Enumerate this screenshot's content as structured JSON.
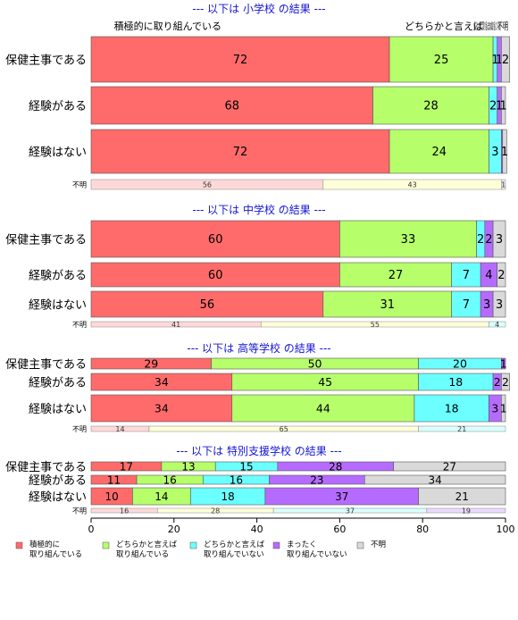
{
  "chart_data": {
    "type": "bar",
    "orientation": "horizontal-stacked",
    "xlim": [
      0,
      100
    ],
    "xticks": [
      0,
      20,
      40,
      60,
      80,
      100
    ],
    "colors": {
      "active": "#FF6B6B",
      "somewhat_active": "#B6FF6B",
      "somewhat_not": "#6BFFFF",
      "not_at_all": "#B66BFF",
      "unknown": "#D9D9D9",
      "unknown_row": [
        "#FFD9D9",
        "#FFFFD9",
        "#D9FFFF",
        "#ECD9FF",
        "#ECECEC"
      ],
      "title": "#1515D4"
    },
    "legend": {
      "position": "bottom",
      "items": [
        {
          "label": "積極的に\n取り組んでいる",
          "color": "#FF6B6B"
        },
        {
          "label": "どちらかと言えば\n取り組んでいる",
          "color": "#B6FF6B"
        },
        {
          "label": "どちらかと言えば\n取り組んでいない",
          "color": "#6BFFFF"
        },
        {
          "label": "まったく\n取り組んでいない",
          "color": "#B66BFF"
        },
        {
          "label": "不明",
          "color": "#D9D9D9"
        }
      ]
    },
    "top_labels": [
      "積極的に取り組んでいる",
      "どちらかと言えば",
      "どちらかと言えば取り組んでいない",
      "まったく取り組んでいない",
      "不明"
    ],
    "panels": [
      {
        "title": "--- 以下は 小学校 の結果 ---",
        "rows": [
          {
            "label": "保健主事である",
            "values": [
              72,
              25,
              1,
              1,
              2
            ],
            "shown": [
              "72",
              "25",
              "1",
              "1",
              "2"
            ]
          },
          {
            "label": "経験がある",
            "values": [
              68,
              28,
              2,
              1,
              1
            ],
            "shown": [
              "68",
              "28",
              "2",
              "1",
              "1"
            ]
          },
          {
            "label": "経験はない",
            "values": [
              72,
              24,
              3,
              0.3,
              1
            ],
            "shown": [
              "72",
              "24",
              "3",
              "",
              "1"
            ]
          }
        ],
        "unknown": {
          "label": "不明",
          "values": [
            56,
            43,
            0,
            0,
            1
          ],
          "shown": [
            "56",
            "43",
            "",
            "",
            "1"
          ]
        }
      },
      {
        "title": "--- 以下は 中学校 の結果 ---",
        "rows": [
          {
            "label": "保健主事である",
            "values": [
              60,
              33,
              2,
              2,
              3
            ],
            "shown": [
              "60",
              "33",
              "2",
              "2",
              "3"
            ]
          },
          {
            "label": "経験がある",
            "values": [
              60,
              27,
              7,
              4,
              2
            ],
            "shown": [
              "60",
              "27",
              "7",
              "4",
              "2"
            ]
          },
          {
            "label": "経験はない",
            "values": [
              56,
              31,
              7,
              3,
              3
            ],
            "shown": [
              "56",
              "31",
              "7",
              "3",
              "3"
            ]
          }
        ],
        "unknown": {
          "label": "不明",
          "values": [
            41,
            55,
            4,
            0,
            0
          ],
          "shown": [
            "41",
            "55",
            "4",
            "",
            ""
          ]
        }
      },
      {
        "title": "--- 以下は 高等学校 の結果 ---",
        "rows": [
          {
            "label": "保健主事である",
            "values": [
              29,
              50,
              20,
              1,
              0
            ],
            "shown": [
              "29",
              "50",
              "20",
              "1",
              ""
            ]
          },
          {
            "label": "経験がある",
            "values": [
              34,
              45,
              18,
              2,
              2
            ],
            "shown": [
              "34",
              "45",
              "18",
              "2",
              "2"
            ]
          },
          {
            "label": "経験はない",
            "values": [
              34,
              44,
              18,
              3,
              1
            ],
            "shown": [
              "34",
              "44",
              "18",
              "3",
              "1"
            ]
          }
        ],
        "unknown": {
          "label": "不明",
          "values": [
            14,
            65,
            21,
            0,
            0
          ],
          "shown": [
            "14",
            "65",
            "21",
            "",
            ""
          ]
        }
      },
      {
        "title": "--- 以下は 特別支援学校 の結果 ---",
        "rows": [
          {
            "label": "保健主事である",
            "values": [
              17,
              13,
              15,
              28,
              27
            ],
            "shown": [
              "17",
              "13",
              "15",
              "28",
              "27"
            ]
          },
          {
            "label": "経験がある",
            "values": [
              11,
              16,
              16,
              23,
              34
            ],
            "shown": [
              "11",
              "16",
              "16",
              "23",
              "34"
            ]
          },
          {
            "label": "経験はない",
            "values": [
              10,
              14,
              18,
              37,
              21
            ],
            "shown": [
              "10",
              "14",
              "18",
              "37",
              "21"
            ]
          }
        ],
        "unknown": {
          "label": "不明",
          "values": [
            16,
            28,
            37,
            19,
            0
          ],
          "shown": [
            "16",
            "28",
            "37",
            "19",
            ""
          ]
        }
      }
    ]
  }
}
